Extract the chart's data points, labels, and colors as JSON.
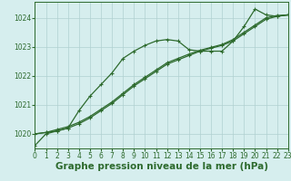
{
  "series": [
    {
      "name": "line_curvy",
      "x": [
        0,
        1,
        2,
        3,
        4,
        5,
        6,
        7,
        8,
        9,
        10,
        11,
        12,
        13,
        14,
        15,
        16,
        17,
        18,
        19,
        20,
        21,
        22,
        23
      ],
      "y": [
        1019.6,
        1020.0,
        1020.1,
        1020.2,
        1020.8,
        1021.3,
        1021.7,
        1022.1,
        1022.6,
        1022.85,
        1023.05,
        1023.2,
        1023.25,
        1023.2,
        1022.9,
        1022.85,
        1022.85,
        1022.85,
        1023.2,
        1023.7,
        1024.3,
        1024.1,
        1024.05,
        1024.1
      ]
    },
    {
      "name": "line_straight1",
      "x": [
        0,
        1,
        2,
        3,
        4,
        5,
        6,
        7,
        8,
        9,
        10,
        11,
        12,
        13,
        14,
        15,
        16,
        17,
        18,
        19,
        20,
        21,
        22,
        23
      ],
      "y": [
        1020.0,
        1020.05,
        1020.1,
        1020.2,
        1020.35,
        1020.55,
        1020.8,
        1021.05,
        1021.35,
        1021.65,
        1021.9,
        1022.15,
        1022.4,
        1022.55,
        1022.7,
        1022.85,
        1022.95,
        1023.05,
        1023.2,
        1023.45,
        1023.7,
        1023.95,
        1024.05,
        1024.1
      ]
    },
    {
      "name": "line_straight2",
      "x": [
        0,
        1,
        2,
        3,
        4,
        5,
        6,
        7,
        8,
        9,
        10,
        11,
        12,
        13,
        14,
        15,
        16,
        17,
        18,
        19,
        20,
        21,
        22,
        23
      ],
      "y": [
        1020.0,
        1020.05,
        1020.15,
        1020.25,
        1020.4,
        1020.6,
        1020.85,
        1021.1,
        1021.4,
        1021.7,
        1021.95,
        1022.2,
        1022.45,
        1022.6,
        1022.75,
        1022.88,
        1022.98,
        1023.08,
        1023.25,
        1023.5,
        1023.75,
        1024.0,
        1024.08,
        1024.1
      ]
    }
  ],
  "line_color": "#2d6a2d",
  "marker": "+",
  "marker_size": 3,
  "background_color": "#d6eeee",
  "grid_color": "#b0d0d0",
  "xlabel": "Graphe pression niveau de la mer (hPa)",
  "xlabel_fontsize": 7.5,
  "xlim": [
    0,
    23
  ],
  "ylim": [
    1019.5,
    1024.55
  ],
  "yticks": [
    1020,
    1021,
    1022,
    1023,
    1024
  ],
  "xticks": [
    0,
    1,
    2,
    3,
    4,
    5,
    6,
    7,
    8,
    9,
    10,
    11,
    12,
    13,
    14,
    15,
    16,
    17,
    18,
    19,
    20,
    21,
    22,
    23
  ],
  "tick_fontsize": 5.5,
  "line_width": 0.9
}
